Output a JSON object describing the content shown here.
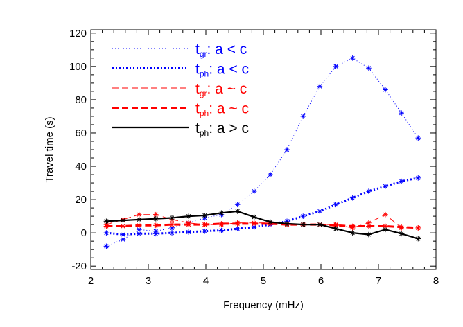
{
  "chart_data": {
    "type": "line",
    "xlabel": "Frequency (mHz)",
    "ylabel": "Travel time (s)",
    "xlim": [
      2,
      8
    ],
    "ylim": [
      -22,
      122
    ],
    "xticks": [
      "2",
      "3",
      "4",
      "5",
      "6",
      "7",
      "8"
    ],
    "yticks": [
      "-20",
      "0",
      "20",
      "40",
      "60",
      "80",
      "100",
      "120"
    ],
    "xtick_values": [
      2,
      3,
      4,
      5,
      6,
      7,
      8
    ],
    "ytick_values": [
      -20,
      0,
      20,
      40,
      60,
      80,
      100,
      120
    ],
    "legend_placement": "top-left",
    "series": [
      {
        "name": "t_gr: a < c",
        "legend": {
          "t": "t",
          "sub": "gr",
          "rest": ": a < c"
        },
        "color": "#0000ff",
        "style": "dotted-thin",
        "marker": "asterisk",
        "x": [
          2.27,
          2.56,
          2.84,
          3.13,
          3.41,
          3.7,
          3.98,
          4.27,
          4.55,
          4.84,
          5.12,
          5.41,
          5.69,
          5.98,
          6.26,
          6.55,
          6.83,
          7.12,
          7.4,
          7.69
        ],
        "y": [
          -8,
          -4,
          2,
          1,
          3,
          6,
          9,
          11,
          17,
          25,
          35,
          50,
          70,
          88,
          100,
          105,
          99,
          86,
          72,
          57
        ]
      },
      {
        "name": "t_ph: a < c",
        "legend": {
          "t": "t",
          "sub": "ph",
          "rest": ": a < c"
        },
        "color": "#0000ff",
        "style": "dotted-thick",
        "marker": "asterisk",
        "x": [
          2.27,
          2.56,
          2.84,
          3.13,
          3.41,
          3.7,
          3.98,
          4.27,
          4.55,
          4.84,
          5.12,
          5.41,
          5.69,
          5.98,
          6.26,
          6.55,
          6.83,
          7.12,
          7.4,
          7.69
        ],
        "y": [
          0,
          -1,
          -0.5,
          -0.5,
          0,
          0.5,
          1,
          1.5,
          2.5,
          3.5,
          5,
          7,
          10,
          13,
          17,
          21,
          25,
          28,
          31,
          33
        ]
      },
      {
        "name": "t_gr: a ~ c",
        "legend": {
          "t": "t",
          "sub": "gr",
          "rest": ": a ~ c"
        },
        "color": "#ff0000",
        "style": "dashed-thin",
        "marker": "asterisk",
        "x": [
          2.27,
          2.56,
          2.84,
          3.13,
          3.41,
          3.7,
          3.98,
          4.27,
          4.55,
          4.84,
          5.12,
          5.41,
          5.69,
          5.98,
          6.26,
          6.55,
          6.83,
          7.12,
          7.4,
          7.69
        ],
        "y": [
          5,
          8,
          11,
          11,
          8,
          6,
          5,
          5,
          6,
          6,
          6,
          5,
          5,
          5,
          5,
          3,
          6,
          11,
          3,
          3
        ]
      },
      {
        "name": "t_ph: a ~ c",
        "legend": {
          "t": "t",
          "sub": "ph",
          "rest": ": a ~ c"
        },
        "color": "#ff0000",
        "style": "dashed-thick",
        "marker": "asterisk",
        "x": [
          2.27,
          2.56,
          2.84,
          3.13,
          3.41,
          3.7,
          3.98,
          4.27,
          4.55,
          4.84,
          5.12,
          5.41,
          5.69,
          5.98,
          6.26,
          6.55,
          6.83,
          7.12,
          7.4,
          7.69
        ],
        "y": [
          4,
          4,
          4.5,
          4.5,
          5,
          5,
          5,
          5.5,
          5.5,
          5.5,
          5.5,
          5,
          5,
          5,
          4.5,
          4,
          4,
          4,
          3.5,
          3
        ]
      },
      {
        "name": "t_ph: a > c",
        "legend": {
          "t": "t",
          "sub": "ph",
          "rest": ": a > c"
        },
        "color": "#000000",
        "style": "solid",
        "marker": "asterisk",
        "x": [
          2.27,
          2.56,
          2.84,
          3.13,
          3.41,
          3.7,
          3.98,
          4.27,
          4.55,
          4.84,
          5.12,
          5.41,
          5.69,
          5.98,
          6.26,
          6.55,
          6.83,
          7.12,
          7.4,
          7.69
        ],
        "y": [
          7,
          7.5,
          8,
          8.5,
          9,
          10,
          10.5,
          12,
          13,
          9.5,
          6.5,
          5.5,
          5,
          5,
          2.5,
          0,
          -1,
          2,
          -0.5,
          -3.5
        ]
      }
    ]
  }
}
